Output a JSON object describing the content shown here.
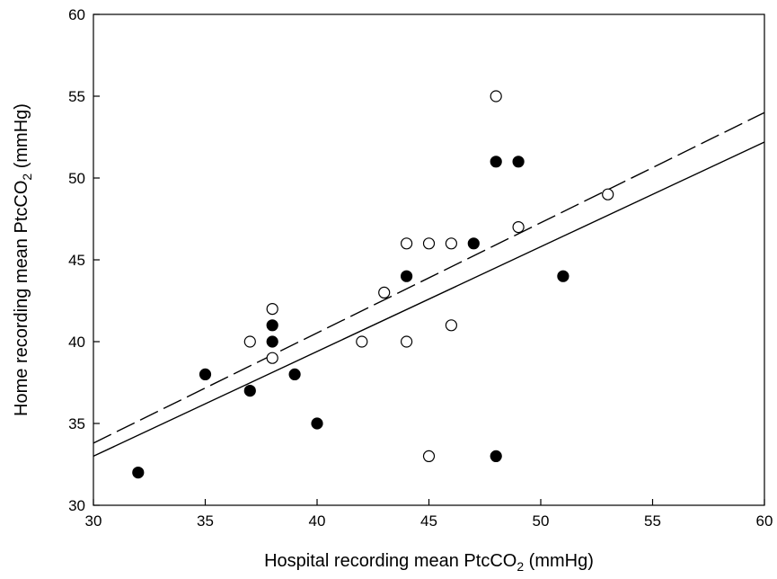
{
  "chart_data": {
    "type": "scatter",
    "xlabel": "Hospital recording mean PtcCO",
    "xlabel_sub": "2",
    "xlabel_unit": " (mmHg)",
    "ylabel": "Home recording mean PtcCO",
    "ylabel_sub": "2",
    "ylabel_unit": " (mmHg)",
    "xlim": [
      30,
      60
    ],
    "ylim": [
      30,
      60
    ],
    "xticks": [
      30,
      35,
      40,
      45,
      50,
      55,
      60
    ],
    "yticks": [
      30,
      35,
      40,
      45,
      50,
      55,
      60
    ],
    "grid": false,
    "legend": "none",
    "series": [
      {
        "marker": "filled-circle",
        "points": [
          [
            32,
            32
          ],
          [
            35,
            38
          ],
          [
            37,
            37
          ],
          [
            38,
            41
          ],
          [
            38,
            40
          ],
          [
            39,
            38
          ],
          [
            40,
            35
          ],
          [
            44,
            44
          ],
          [
            47,
            46
          ],
          [
            48,
            51
          ],
          [
            49,
            51
          ],
          [
            48,
            33
          ],
          [
            51,
            44
          ]
        ]
      },
      {
        "marker": "open-circle",
        "points": [
          [
            37,
            40
          ],
          [
            38,
            42
          ],
          [
            38,
            39
          ],
          [
            42,
            40
          ],
          [
            43,
            43
          ],
          [
            44,
            46
          ],
          [
            44,
            40
          ],
          [
            45,
            46
          ],
          [
            46,
            46
          ],
          [
            46,
            41
          ],
          [
            45,
            33
          ],
          [
            48,
            55
          ],
          [
            49,
            47
          ],
          [
            53,
            49
          ]
        ]
      }
    ],
    "lines": [
      {
        "style": "solid",
        "endpoints": [
          [
            30,
            33.0
          ],
          [
            60,
            52.2
          ]
        ]
      },
      {
        "style": "dashed",
        "endpoints": [
          [
            30,
            33.8
          ],
          [
            60,
            54.0
          ]
        ]
      }
    ]
  }
}
